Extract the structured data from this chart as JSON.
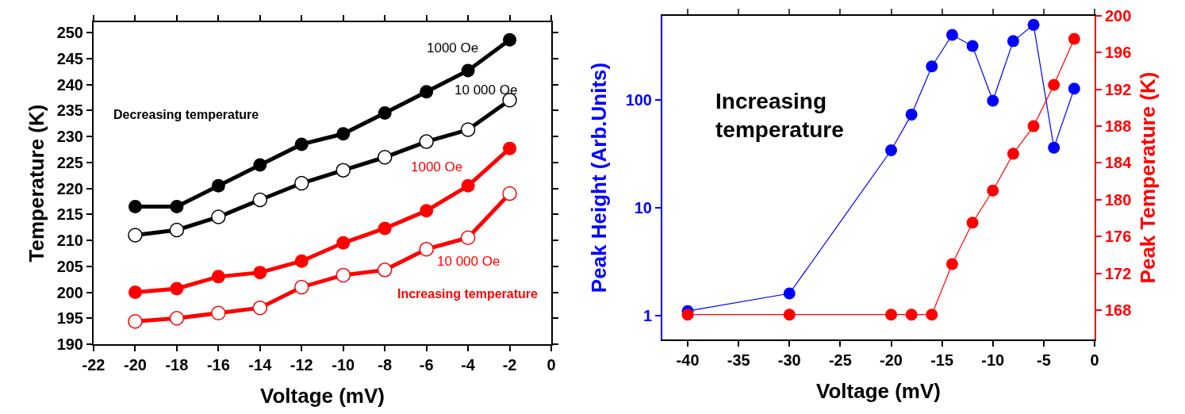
{
  "chart_data": [
    {
      "type": "line",
      "xlabel": "Voltage (mV)",
      "ylabel": "Temperature (K)",
      "x": [
        -20,
        -18,
        -16,
        -14,
        -12,
        -10,
        -8,
        -6,
        -4,
        -2
      ],
      "series": [
        {
          "name": "1000 Oe",
          "color": "#000000",
          "marker": "circle",
          "values": [
            216.5,
            216.5,
            220.5,
            224.5,
            228.5,
            230.5,
            234.5,
            238.6,
            242.7,
            248.6
          ]
        },
        {
          "name": "10 000 Oe",
          "color": "#000000",
          "marker": "circle-open",
          "values": [
            211,
            212,
            214.5,
            217.8,
            221,
            223.5,
            226,
            229,
            231.3,
            237
          ]
        },
        {
          "name": "1000 Oe",
          "color": "#ff0000",
          "marker": "circle",
          "values": [
            200,
            200.7,
            203,
            203.8,
            206,
            209.5,
            212.3,
            215.7,
            220.5,
            227.7
          ]
        },
        {
          "name": "10 000 Oe",
          "color": "#ff0000",
          "marker": "circle-open",
          "values": [
            194.4,
            195,
            196,
            197,
            201,
            203.3,
            204.3,
            208.3,
            210.5,
            219
          ]
        }
      ],
      "annotations": [
        "Decreasing temperature",
        "Increasing temperature"
      ],
      "xlim": [
        -22,
        0
      ],
      "xticks": [
        -22,
        -20,
        -18,
        -16,
        -14,
        -12,
        -10,
        -8,
        -6,
        -4,
        -2,
        0
      ],
      "ylim": [
        190,
        252
      ],
      "yticks": [
        190,
        195,
        200,
        205,
        210,
        215,
        220,
        225,
        230,
        235,
        240,
        245,
        250
      ],
      "grid": false,
      "legend": false,
      "marker": "circle",
      "line_style": "solid"
    },
    {
      "type": "line",
      "xlabel": "Voltage (mV)",
      "ylabel": "Peak Height (Arb.Units)",
      "y2label": "Peak Temperature (K)",
      "series": [
        {
          "color": "#0000ff",
          "x": [
            -40,
            -30,
            -20,
            -18,
            -16,
            -14,
            -12,
            -10,
            -8,
            -6,
            -4,
            -2
          ],
          "values": [
            1.1,
            1.6,
            34,
            73,
            204,
            400,
            315,
            98,
            350,
            495,
            36,
            127
          ]
        },
        {
          "color": "#ff0000",
          "axis": "y2",
          "x": [
            -40,
            -30,
            -20,
            -18,
            -16,
            -14,
            -12,
            -10,
            -8,
            -6,
            -4,
            -2
          ],
          "values": [
            167.5,
            167.5,
            167.5,
            167.5,
            167.5,
            173,
            177.5,
            181,
            185,
            188,
            192.5,
            197.5
          ]
        }
      ],
      "annotations": [
        "Increasing\ntemperature"
      ],
      "xlim": [
        -42.5,
        0
      ],
      "xticks": [
        -40,
        -35,
        -30,
        -25,
        -20,
        -15,
        -10,
        -5,
        0
      ],
      "log": "y",
      "ylim": [
        0.6,
        600
      ],
      "yticks": [
        1,
        10,
        100
      ],
      "y2lim": [
        164.8,
        200
      ],
      "y2ticks": [
        168,
        172,
        176,
        180,
        184,
        188,
        192,
        196,
        200
      ],
      "grid": false,
      "legend": false,
      "marker": "circle",
      "line_style": "solid"
    }
  ]
}
